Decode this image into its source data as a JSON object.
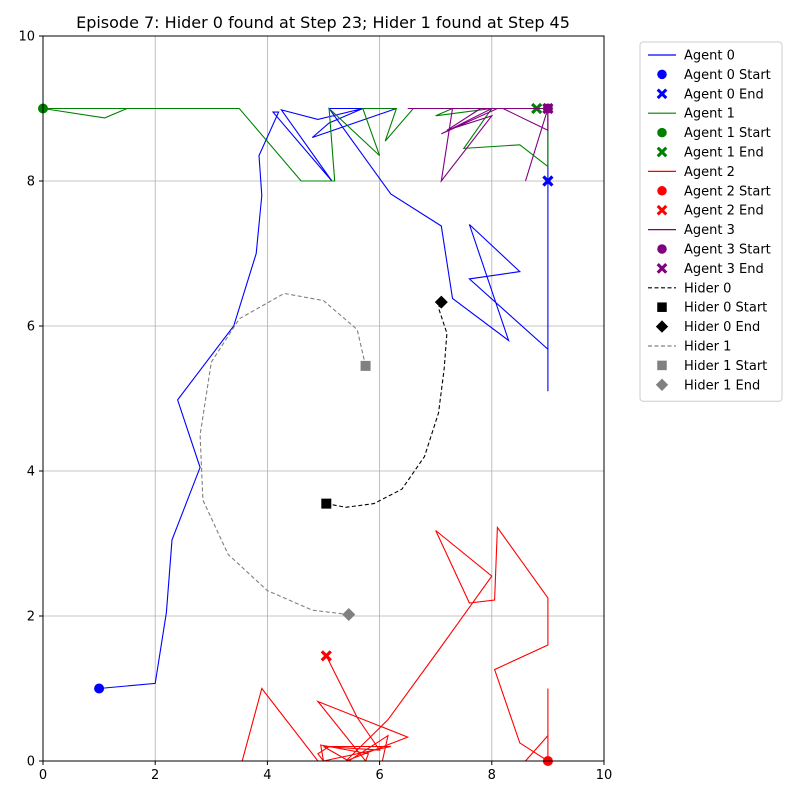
{
  "chart_data": {
    "type": "line",
    "title": "Episode 7: Hider 0 found at Step 23; Hider 1 found at Step 45",
    "xlabel": "",
    "ylabel": "",
    "xlim": [
      0,
      10
    ],
    "ylim": [
      0,
      10
    ],
    "xticks": [
      "0",
      "2",
      "4",
      "6",
      "8",
      "10"
    ],
    "yticks": [
      "0",
      "2",
      "4",
      "6",
      "8",
      "10"
    ],
    "grid": true,
    "legend_position": "outside-right-top",
    "series": [
      {
        "name": "Agent 0",
        "color": "#0000ff",
        "style": "solid",
        "start_label": "Agent 0 Start",
        "end_label": "Agent 0 End",
        "start_marker": "circle",
        "end_marker": "x",
        "points": [
          [
            1.0,
            1.0
          ],
          [
            2.0,
            1.07
          ],
          [
            2.2,
            2.05
          ],
          [
            2.3,
            3.05
          ],
          [
            2.8,
            4.05
          ],
          [
            2.4,
            4.98
          ],
          [
            3.4,
            6.0
          ],
          [
            3.8,
            7.0
          ],
          [
            3.9,
            7.8
          ],
          [
            3.85,
            8.35
          ],
          [
            4.2,
            8.95
          ],
          [
            4.1,
            8.95
          ],
          [
            5.15,
            8.0
          ],
          [
            4.25,
            8.98
          ],
          [
            4.9,
            8.85
          ],
          [
            5.7,
            9.0
          ],
          [
            5.1,
            8.8
          ],
          [
            4.8,
            8.6
          ],
          [
            6.3,
            9.0
          ],
          [
            5.1,
            9.0
          ],
          [
            6.2,
            7.82
          ],
          [
            7.1,
            7.38
          ],
          [
            7.3,
            6.38
          ],
          [
            8.3,
            5.8
          ],
          [
            7.6,
            7.4
          ],
          [
            8.5,
            6.75
          ],
          [
            7.6,
            6.65
          ],
          [
            9.0,
            5.68
          ],
          [
            9.0,
            5.1
          ],
          [
            9.0,
            9.0
          ],
          [
            9.0,
            7.1
          ],
          [
            9.0,
            8.0
          ]
        ]
      },
      {
        "name": "Agent 1",
        "color": "#008000",
        "style": "solid",
        "start_label": "Agent 1 Start",
        "end_label": "Agent 1 End",
        "start_marker": "circle",
        "end_marker": "x",
        "points": [
          [
            0.0,
            9.0
          ],
          [
            1.1,
            8.87
          ],
          [
            1.5,
            9.0
          ],
          [
            2.5,
            9.0
          ],
          [
            0.0,
            9.0
          ],
          [
            3.5,
            9.0
          ],
          [
            4.6,
            8.0
          ],
          [
            5.2,
            8.0
          ],
          [
            5.1,
            9.0
          ],
          [
            6.0,
            8.35
          ],
          [
            5.7,
            9.0
          ],
          [
            6.3,
            9.0
          ],
          [
            6.1,
            8.55
          ],
          [
            6.6,
            9.0
          ],
          [
            7.3,
            9.0
          ],
          [
            7.0,
            8.9
          ],
          [
            8.0,
            9.0
          ],
          [
            7.5,
            8.45
          ],
          [
            8.5,
            8.5
          ],
          [
            9.0,
            8.2
          ],
          [
            9.0,
            9.0
          ],
          [
            8.8,
            9.0
          ]
        ]
      },
      {
        "name": "Agent 2",
        "color": "#ff0000",
        "style": "solid",
        "start_label": "Agent 2 Start",
        "end_label": "Agent 2 End",
        "start_marker": "circle",
        "end_marker": "x",
        "points": [
          [
            9.0,
            0.0
          ],
          [
            9.0,
            1.0
          ],
          [
            9.0,
            0.0
          ],
          [
            8.6,
            0.0
          ],
          [
            9.0,
            0.35
          ],
          [
            9.0,
            0.0
          ],
          [
            8.5,
            0.25
          ],
          [
            8.05,
            1.26
          ],
          [
            9.0,
            1.6
          ],
          [
            9.0,
            2.25
          ],
          [
            8.1,
            3.22
          ],
          [
            8.05,
            2.22
          ],
          [
            7.6,
            2.18
          ],
          [
            7.0,
            3.18
          ],
          [
            8.0,
            2.55
          ],
          [
            7.1,
            1.58
          ],
          [
            6.15,
            0.57
          ],
          [
            5.4,
            0.0
          ],
          [
            6.5,
            0.33
          ],
          [
            4.9,
            0.82
          ],
          [
            5.75,
            0.0
          ],
          [
            6.8,
            0.0
          ],
          [
            4.9,
            0.0
          ],
          [
            3.9,
            1.0
          ],
          [
            3.55,
            0.0
          ],
          [
            5.4,
            0.0
          ],
          [
            5.0,
            0.0
          ],
          [
            6.2,
            0.2
          ],
          [
            5.1,
            0.2
          ],
          [
            4.9,
            0.1
          ],
          [
            5.0,
            0.0
          ],
          [
            4.95,
            0.22
          ],
          [
            5.8,
            0.1
          ],
          [
            5.75,
            0.0
          ],
          [
            5.8,
            0.0
          ],
          [
            6.05,
            0.0
          ],
          [
            6.15,
            0.35
          ],
          [
            5.45,
            0.0
          ],
          [
            5.0,
            0.2
          ],
          [
            6.0,
            0.15
          ],
          [
            5.6,
            0.6
          ],
          [
            5.05,
            1.45
          ]
        ]
      },
      {
        "name": "Agent 3",
        "color": "#800080",
        "style": "solid",
        "start_label": "Agent 3 Start",
        "end_label": "Agent 3 End",
        "start_marker": "circle",
        "end_marker": "x",
        "points": [
          [
            9.0,
            9.0
          ],
          [
            8.6,
            8.0
          ],
          [
            9.0,
            9.0
          ],
          [
            8.0,
            9.0
          ],
          [
            7.1,
            8.65
          ],
          [
            8.1,
            9.0
          ],
          [
            7.3,
            9.0
          ],
          [
            7.1,
            8.0
          ],
          [
            8.0,
            8.9
          ],
          [
            7.2,
            8.7
          ],
          [
            7.8,
            9.0
          ],
          [
            6.5,
            9.0
          ],
          [
            8.2,
            9.0
          ],
          [
            9.0,
            8.7
          ],
          [
            9.0,
            9.0
          ],
          [
            8.7,
            9.0
          ],
          [
            9.0,
            9.0
          ]
        ]
      },
      {
        "name": "Hider 0",
        "color": "#000000",
        "style": "dashed",
        "start_label": "Hider 0 Start",
        "end_label": "Hider 0 End",
        "start_marker": "square",
        "end_marker": "diamond",
        "points": [
          [
            5.05,
            3.55
          ],
          [
            5.4,
            3.5
          ],
          [
            5.9,
            3.55
          ],
          [
            6.4,
            3.75
          ],
          [
            6.8,
            4.2
          ],
          [
            7.05,
            4.8
          ],
          [
            7.15,
            5.4
          ],
          [
            7.2,
            5.9
          ],
          [
            7.05,
            6.25
          ],
          [
            7.1,
            6.33
          ]
        ]
      },
      {
        "name": "Hider 1",
        "color": "#808080",
        "style": "dashed",
        "start_label": "Hider 1 Start",
        "end_label": "Hider 1 End",
        "start_marker": "square",
        "end_marker": "diamond",
        "points": [
          [
            5.75,
            5.45
          ],
          [
            5.6,
            5.95
          ],
          [
            5.0,
            6.35
          ],
          [
            4.3,
            6.45
          ],
          [
            3.5,
            6.1
          ],
          [
            3.0,
            5.5
          ],
          [
            2.8,
            4.5
          ],
          [
            2.85,
            3.6
          ],
          [
            3.3,
            2.85
          ],
          [
            4.0,
            2.35
          ],
          [
            4.8,
            2.08
          ],
          [
            5.45,
            2.02
          ]
        ]
      }
    ]
  }
}
